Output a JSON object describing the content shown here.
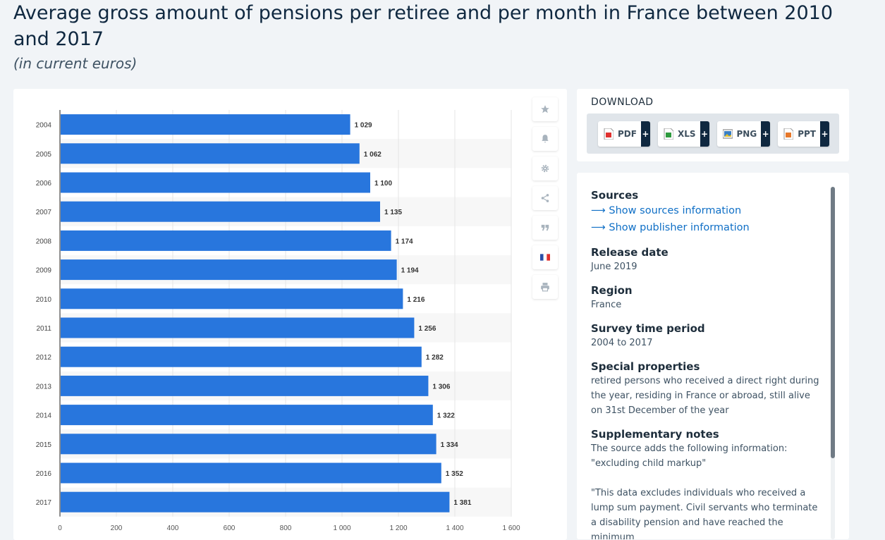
{
  "header": {
    "title": "Average gross amount of pensions per retiree and per month in France between 2010 and 2017",
    "subtitle": "(in current euros)"
  },
  "toolbar": {
    "icons": [
      "star-icon",
      "bell-icon",
      "gear-icon",
      "share-icon",
      "quote-icon",
      "france-flag-icon",
      "print-icon"
    ]
  },
  "download": {
    "title": "DOWNLOAD",
    "buttons": [
      {
        "label": "PDF",
        "plus": "+",
        "icon": "pdf-file-icon",
        "color": "#e0312f"
      },
      {
        "label": "XLS",
        "plus": "+",
        "icon": "xls-file-icon",
        "color": "#2e9a3e"
      },
      {
        "label": "PNG",
        "plus": "+",
        "icon": "png-file-icon",
        "color": "#3a7fc4"
      },
      {
        "label": "PPT",
        "plus": "+",
        "icon": "ppt-file-icon",
        "color": "#e6782a"
      }
    ]
  },
  "info": {
    "sources_heading": "Sources",
    "show_sources": "Show sources information",
    "show_publisher": "Show publisher information",
    "release_heading": "Release date",
    "release_value": "June 2019",
    "region_heading": "Region",
    "region_value": "France",
    "survey_heading": "Survey time period",
    "survey_value": "2004 to 2017",
    "special_heading": "Special properties",
    "special_value": "retired persons who received a direct right during the year, residing in France or abroad, still alive on 31st December of the year",
    "notes_heading": "Supplementary notes",
    "notes_value_1": "The source adds the following information: \"excluding child markup\"",
    "notes_value_2": "\"This data excludes individuals who received a lump sum payment. Civil servants who terminate a disability pension and have reached the minimum"
  },
  "chart_data": {
    "type": "bar",
    "orientation": "horizontal",
    "title": "Average gross amount of pensions per retiree and per month in France between 2010 and 2017",
    "subtitle": "(in current euros)",
    "categories": [
      "2004",
      "2005",
      "2006",
      "2007",
      "2008",
      "2009",
      "2010",
      "2011",
      "2012",
      "2013",
      "2014",
      "2015",
      "2016",
      "2017"
    ],
    "values": [
      1029,
      1062,
      1100,
      1135,
      1174,
      1194,
      1216,
      1256,
      1282,
      1306,
      1322,
      1334,
      1352,
      1381
    ],
    "value_labels": [
      "1 029",
      "1 062",
      "1 100",
      "1 135",
      "1 174",
      "1 194",
      "1 216",
      "1 256",
      "1 282",
      "1 306",
      "1 322",
      "1 334",
      "1 352",
      "1 381"
    ],
    "x_ticks": [
      0,
      200,
      400,
      600,
      800,
      1000,
      1200,
      1400,
      1600
    ],
    "x_tick_labels": [
      "0",
      "200",
      "400",
      "600",
      "800",
      "1 000",
      "1 200",
      "1 400",
      "1 600"
    ],
    "xlim": [
      0,
      1600
    ],
    "xlabel": "",
    "ylabel": "",
    "grid": true,
    "bar_color": "#2876dd"
  }
}
